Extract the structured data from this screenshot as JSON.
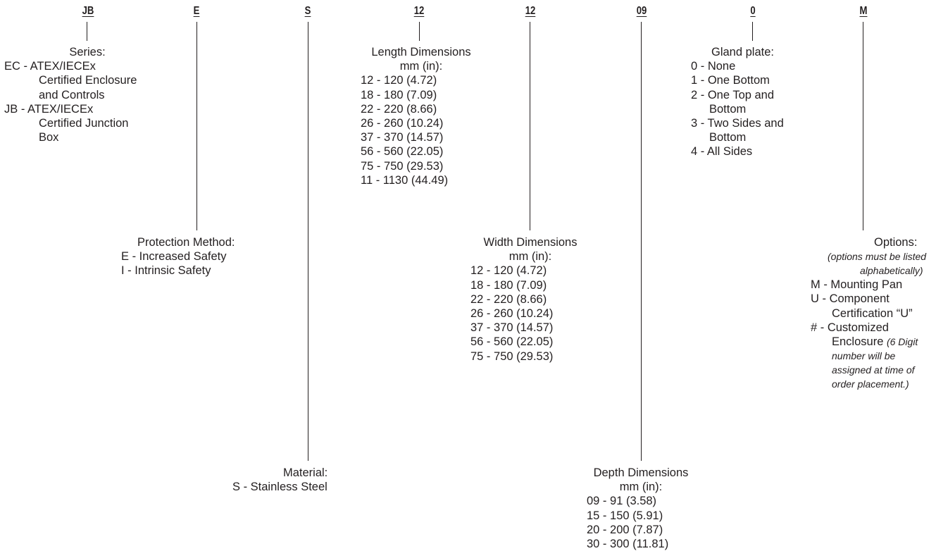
{
  "codes": {
    "series": "JB",
    "protection": "E",
    "material": "S",
    "length": "12",
    "width": "12",
    "depth": "09",
    "gland": "0",
    "options": "M"
  },
  "series": {
    "heading": "Series:",
    "items": [
      {
        "line1": "EC - ATEX/IECEx",
        "line2": "Certified Enclosure",
        "line3": "and Controls"
      },
      {
        "line1": "JB - ATEX/IECEx",
        "line2": "Certified Junction",
        "line3": "Box"
      }
    ]
  },
  "protection": {
    "heading": "Protection Method:",
    "items": [
      "E - Increased Safety",
      "I - Intrinsic Safety"
    ]
  },
  "material": {
    "heading": "Material:",
    "items": [
      "S - Stainless Steel"
    ]
  },
  "length": {
    "heading": "Length Dimensions",
    "subheading": "mm (in):",
    "items": [
      "12 - 120 (4.72)",
      "18 - 180 (7.09)",
      "22 - 220 (8.66)",
      "26 - 260 (10.24)",
      "37 - 370 (14.57)",
      "56 - 560 (22.05)",
      "75 - 750 (29.53)",
      "11 - 1130 (44.49)"
    ]
  },
  "width": {
    "heading": "Width Dimensions",
    "subheading": "mm (in):",
    "items": [
      "12 - 120 (4.72)",
      "18 - 180 (7.09)",
      "22 - 220 (8.66)",
      "26 - 260 (10.24)",
      "37 - 370 (14.57)",
      "56 - 560 (22.05)",
      "75 - 750 (29.53)"
    ]
  },
  "depth": {
    "heading": "Depth Dimensions",
    "subheading": "mm (in):",
    "items": [
      "09 - 91 (3.58)",
      "15 - 150 (5.91)",
      "20 - 200 (7.87)",
      "30 - 300 (11.81)"
    ]
  },
  "gland": {
    "heading": "Gland plate:",
    "items": [
      "0 - None",
      "1 - One Bottom",
      "2 - One Top and Bottom",
      "3 - Two Sides and Bottom",
      "4 - All Sides"
    ],
    "item2_line1": "2 - One Top and",
    "item2_line2": "Bottom",
    "item3_line1": "3 - Two Sides and",
    "item3_line2": "Bottom"
  },
  "options": {
    "heading": "Options:",
    "note_line1": "(options must be listed",
    "note_line2": "alphabetically)",
    "m_line": "M - Mounting Pan",
    "u_line1": "U - Component",
    "u_line2": "Certification “U”",
    "hash_line1": "# - Customized",
    "hash_line2": "Enclosure",
    "hash_note1": "(6 Digit",
    "hash_note2": "number will be",
    "hash_note3": "assigned at time of",
    "hash_note4": "order placement.)"
  }
}
